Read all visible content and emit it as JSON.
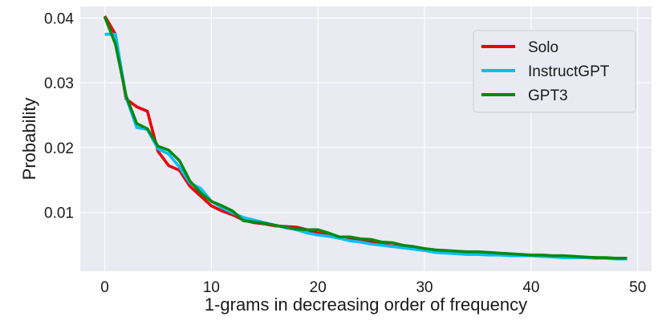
{
  "chart_data": {
    "type": "line",
    "xlabel": "1-grams in decreasing order of frequency",
    "ylabel": "Probability",
    "xlim": [
      -2.3,
      51.3
    ],
    "ylim": [
      0.0009,
      0.0418
    ],
    "xticks": [
      0,
      10,
      20,
      30,
      40,
      50
    ],
    "xtick_labels": [
      "0",
      "10",
      "20",
      "30",
      "40",
      "50"
    ],
    "yticks": [
      0.01,
      0.02,
      0.03,
      0.04
    ],
    "ytick_labels": [
      "0.01",
      "0.02",
      "0.03",
      "0.04"
    ],
    "grid": true,
    "background": "#eaeaf2",
    "legend_position": "top-right",
    "x": [
      0,
      1,
      2,
      3,
      4,
      5,
      6,
      7,
      8,
      9,
      10,
      11,
      12,
      13,
      14,
      15,
      16,
      17,
      18,
      19,
      20,
      21,
      22,
      23,
      24,
      25,
      26,
      27,
      28,
      29,
      30,
      31,
      32,
      33,
      34,
      35,
      36,
      37,
      38,
      39,
      40,
      41,
      42,
      43,
      44,
      45,
      46,
      47,
      48,
      49
    ],
    "series": [
      {
        "name": "Solo",
        "color": "#e8000b",
        "values": [
          0.0403,
          0.0375,
          0.0275,
          0.0263,
          0.0256,
          0.0194,
          0.0172,
          0.0165,
          0.014,
          0.0125,
          0.011,
          0.0102,
          0.0096,
          0.0088,
          0.0084,
          0.0082,
          0.0079,
          0.0078,
          0.0077,
          0.0073,
          0.0068,
          0.0064,
          0.006,
          0.0058,
          0.0056,
          0.0054,
          0.005,
          0.0048,
          0.0046,
          0.0044,
          0.0043,
          0.0041,
          0.004,
          0.0039,
          0.0038,
          0.0037,
          0.0036,
          0.0035,
          0.0034,
          0.0033,
          0.0033,
          0.0032,
          0.0032,
          0.0031,
          0.0031,
          0.003,
          0.003,
          0.0029,
          0.0029,
          0.0028
        ]
      },
      {
        "name": "InstructGPT",
        "color": "#00bfff",
        "values": [
          0.0375,
          0.0375,
          0.0278,
          0.0231,
          0.0228,
          0.0198,
          0.019,
          0.017,
          0.0145,
          0.0137,
          0.0117,
          0.0107,
          0.0099,
          0.0092,
          0.0088,
          0.0084,
          0.008,
          0.0076,
          0.0073,
          0.0068,
          0.0065,
          0.0063,
          0.006,
          0.0056,
          0.0054,
          0.0051,
          0.0049,
          0.0047,
          0.0045,
          0.0043,
          0.0041,
          0.0038,
          0.0037,
          0.0036,
          0.0035,
          0.0035,
          0.0034,
          0.0034,
          0.0033,
          0.0033,
          0.0033,
          0.0032,
          0.0031,
          0.003,
          0.003,
          0.003,
          0.0029,
          0.0029,
          0.0028,
          0.0028
        ]
      },
      {
        "name": "GPT3",
        "color": "#028a0f",
        "values": [
          0.0402,
          0.036,
          0.028,
          0.0237,
          0.0229,
          0.0202,
          0.0196,
          0.018,
          0.0148,
          0.013,
          0.0117,
          0.011,
          0.0102,
          0.0087,
          0.0085,
          0.0083,
          0.008,
          0.0077,
          0.0074,
          0.0073,
          0.0073,
          0.0068,
          0.0062,
          0.0062,
          0.0059,
          0.0058,
          0.0054,
          0.0053,
          0.0049,
          0.0047,
          0.0044,
          0.0042,
          0.0041,
          0.004,
          0.0039,
          0.0039,
          0.0038,
          0.0037,
          0.0036,
          0.0035,
          0.0034,
          0.0034,
          0.0033,
          0.0033,
          0.0032,
          0.0031,
          0.003,
          0.003,
          0.0029,
          0.0029
        ]
      }
    ]
  }
}
